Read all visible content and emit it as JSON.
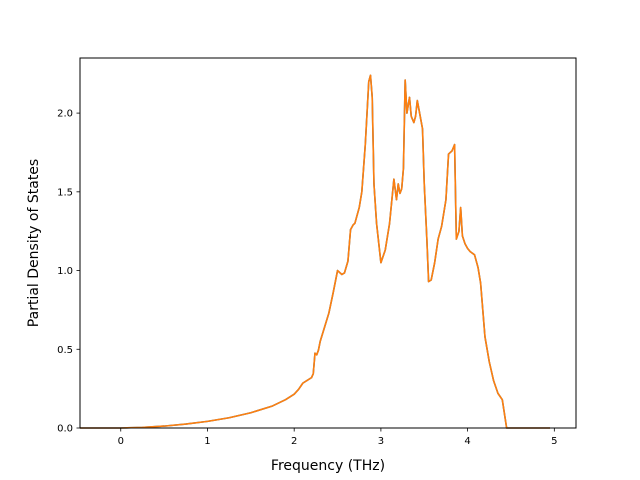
{
  "chart_data": {
    "type": "line",
    "title": "",
    "xlabel": "Frequency (THz)",
    "ylabel": "Partial Density of States",
    "xlim": [
      -0.47,
      5.25
    ],
    "ylim": [
      0.0,
      2.35
    ],
    "xticks": [
      0,
      1,
      2,
      3,
      4,
      5
    ],
    "xtick_labels": [
      "0",
      "1",
      "2",
      "3",
      "4",
      "5"
    ],
    "yticks": [
      0.0,
      0.5,
      1.0,
      1.5,
      2.0
    ],
    "ytick_labels": [
      "0.0",
      "0.5",
      "1.0",
      "1.5",
      "2.0"
    ],
    "grid": false,
    "series": [
      {
        "color": "#1f77b4",
        "x": [
          -0.47,
          0.0,
          0.25,
          0.5,
          0.75,
          1.0,
          1.25,
          1.5,
          1.75,
          1.9,
          2.0,
          2.05,
          2.1,
          2.2,
          2.22,
          2.24,
          2.26,
          2.28,
          2.3,
          2.35,
          2.4,
          2.45,
          2.5,
          2.55,
          2.58,
          2.62,
          2.65,
          2.68,
          2.7,
          2.75,
          2.78,
          2.82,
          2.86,
          2.88,
          2.9,
          2.92,
          2.95,
          3.0,
          3.05,
          3.1,
          3.15,
          3.18,
          3.2,
          3.22,
          3.24,
          3.26,
          3.28,
          3.3,
          3.33,
          3.35,
          3.38,
          3.4,
          3.42,
          3.45,
          3.48,
          3.5,
          3.53,
          3.55,
          3.58,
          3.62,
          3.66,
          3.7,
          3.75,
          3.78,
          3.82,
          3.85,
          3.87,
          3.9,
          3.92,
          3.94,
          3.97,
          4.0,
          4.03,
          4.08,
          4.12,
          4.15,
          4.2,
          4.25,
          4.3,
          4.35,
          4.4,
          4.45,
          4.5,
          4.53,
          4.56,
          4.6,
          4.7,
          4.8,
          4.95
        ],
        "y": [
          0.0,
          0.0,
          0.004,
          0.012,
          0.025,
          0.042,
          0.065,
          0.097,
          0.14,
          0.18,
          0.215,
          0.245,
          0.285,
          0.32,
          0.345,
          0.475,
          0.465,
          0.495,
          0.55,
          0.64,
          0.73,
          0.86,
          1.0,
          0.975,
          0.985,
          1.06,
          1.26,
          1.29,
          1.3,
          1.4,
          1.5,
          1.8,
          2.2,
          2.24,
          2.1,
          1.55,
          1.3,
          1.05,
          1.13,
          1.3,
          1.58,
          1.45,
          1.55,
          1.49,
          1.52,
          1.65,
          2.21,
          2.0,
          2.1,
          1.98,
          1.94,
          1.98,
          2.08,
          1.99,
          1.9,
          1.55,
          1.2,
          0.93,
          0.94,
          1.05,
          1.2,
          1.28,
          1.45,
          1.74,
          1.76,
          1.8,
          1.2,
          1.25,
          1.4,
          1.22,
          1.17,
          1.14,
          1.12,
          1.1,
          1.02,
          0.92,
          0.58,
          0.42,
          0.3,
          0.22,
          0.18,
          0.0,
          0.0,
          0.0,
          0.0,
          0.0,
          0.0,
          0.0,
          0.0
        ]
      },
      {
        "color": "#ff7f0e",
        "x": [
          -0.47,
          0.0,
          0.25,
          0.5,
          0.75,
          1.0,
          1.25,
          1.5,
          1.75,
          1.9,
          2.0,
          2.05,
          2.1,
          2.2,
          2.22,
          2.24,
          2.26,
          2.28,
          2.3,
          2.35,
          2.4,
          2.45,
          2.5,
          2.55,
          2.58,
          2.62,
          2.65,
          2.68,
          2.7,
          2.75,
          2.78,
          2.82,
          2.86,
          2.88,
          2.9,
          2.92,
          2.95,
          3.0,
          3.05,
          3.1,
          3.15,
          3.18,
          3.2,
          3.22,
          3.24,
          3.26,
          3.28,
          3.3,
          3.33,
          3.35,
          3.38,
          3.4,
          3.42,
          3.45,
          3.48,
          3.5,
          3.53,
          3.55,
          3.58,
          3.62,
          3.66,
          3.7,
          3.75,
          3.78,
          3.82,
          3.85,
          3.87,
          3.9,
          3.92,
          3.94,
          3.97,
          4.0,
          4.03,
          4.08,
          4.12,
          4.15,
          4.2,
          4.25,
          4.3,
          4.35,
          4.4,
          4.45,
          4.5,
          4.53,
          4.56,
          4.6,
          4.7,
          4.8,
          4.95
        ],
        "y": [
          0.0,
          0.0,
          0.004,
          0.012,
          0.025,
          0.042,
          0.065,
          0.097,
          0.14,
          0.18,
          0.215,
          0.245,
          0.285,
          0.32,
          0.345,
          0.475,
          0.465,
          0.495,
          0.55,
          0.64,
          0.73,
          0.86,
          1.0,
          0.975,
          0.985,
          1.06,
          1.26,
          1.29,
          1.3,
          1.4,
          1.5,
          1.8,
          2.2,
          2.24,
          2.1,
          1.55,
          1.3,
          1.05,
          1.13,
          1.3,
          1.58,
          1.45,
          1.55,
          1.49,
          1.52,
          1.65,
          2.21,
          2.0,
          2.1,
          1.98,
          1.94,
          1.98,
          2.08,
          1.99,
          1.9,
          1.55,
          1.2,
          0.93,
          0.94,
          1.05,
          1.2,
          1.28,
          1.45,
          1.74,
          1.76,
          1.8,
          1.2,
          1.25,
          1.4,
          1.22,
          1.17,
          1.14,
          1.12,
          1.1,
          1.02,
          0.92,
          0.58,
          0.42,
          0.3,
          0.22,
          0.18,
          0.0,
          0.0,
          0.0,
          0.0,
          0.0,
          0.0,
          0.0,
          0.0
        ]
      }
    ]
  }
}
